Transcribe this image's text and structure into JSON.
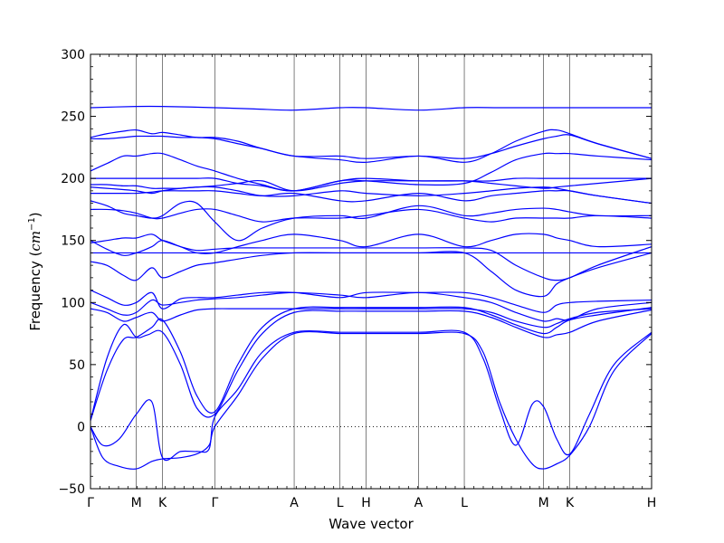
{
  "chart_data": {
    "type": "line",
    "xlabel": "Wave vector",
    "ylabel_prefix": "Frequency (",
    "ylabel_unit_base": "cm",
    "ylabel_unit_exp": "−1",
    "ylabel_suffix": ")",
    "ylim": [
      -50,
      300
    ],
    "yticks": [
      -50,
      0,
      50,
      100,
      150,
      200,
      250,
      300
    ],
    "grid": false,
    "zero_line": {
      "y": 0,
      "style": "dotted",
      "color": "#000000"
    },
    "band_color": "#0000ff",
    "xlim": [
      0,
      6.86
    ],
    "high_symmetry_points": [
      {
        "label": "Γ",
        "x": 0.0
      },
      {
        "label": "M",
        "x": 0.56
      },
      {
        "label": "K",
        "x": 0.88
      },
      {
        "label": "Γ",
        "x": 1.52
      },
      {
        "label": "A",
        "x": 2.49
      },
      {
        "label": "L",
        "x": 3.05
      },
      {
        "label": "H",
        "x": 3.37
      },
      {
        "label": "A",
        "x": 4.01
      },
      {
        "label": "L",
        "x": 4.57
      },
      {
        "label": "M",
        "x": 5.54
      },
      {
        "label": "K",
        "x": 5.86
      },
      {
        "label": "H",
        "x": 6.86
      }
    ],
    "series": [
      {
        "x": [
          0,
          0.15,
          0.35,
          0.56,
          0.75,
          0.88,
          1.1,
          1.3,
          1.45,
          1.52,
          1.8,
          2.1,
          2.49,
          3.05,
          3.37,
          4.01,
          4.57,
          4.8,
          5.0,
          5.2,
          5.4,
          5.54,
          5.7,
          5.86,
          6.1,
          6.4,
          6.86
        ],
        "y": [
          0,
          -25,
          -32,
          -34,
          -28,
          -26,
          -25,
          -22,
          -15,
          0,
          25,
          55,
          75,
          75,
          75,
          75,
          75,
          60,
          20,
          -10,
          -30,
          -34,
          -30,
          -23,
          0,
          45,
          75
        ]
      },
      {
        "x": [
          0,
          0.15,
          0.35,
          0.56,
          0.75,
          0.88,
          1.1,
          1.3,
          1.45,
          1.52,
          1.8,
          2.1,
          2.49,
          3.05,
          3.37,
          4.01,
          4.57,
          4.8,
          5.0,
          5.2,
          5.4,
          5.54,
          5.7,
          5.86,
          6.1,
          6.4,
          6.86
        ],
        "y": [
          0,
          -15,
          -10,
          10,
          20,
          -25,
          -20,
          -20,
          -18,
          8,
          30,
          60,
          76,
          76,
          76,
          76,
          76,
          55,
          15,
          -15,
          18,
          16,
          -10,
          -22,
          10,
          50,
          76
        ]
      },
      {
        "x": [
          0,
          0.2,
          0.4,
          0.56,
          0.7,
          0.88,
          1.1,
          1.3,
          1.52,
          1.8,
          2.1,
          2.49,
          3.05,
          3.37,
          4.01,
          4.57,
          4.9,
          5.2,
          5.54,
          5.7,
          5.86,
          6.2,
          6.86
        ],
        "y": [
          5,
          55,
          82,
          72,
          74,
          76,
          50,
          15,
          10,
          45,
          75,
          92,
          93,
          93,
          93,
          93,
          88,
          80,
          72,
          74,
          76,
          85,
          94
        ]
      },
      {
        "x": [
          0,
          0.2,
          0.4,
          0.56,
          0.75,
          0.88,
          1.1,
          1.3,
          1.52,
          1.8,
          2.1,
          2.49,
          3.05,
          3.37,
          4.01,
          4.57,
          4.9,
          5.2,
          5.54,
          5.7,
          5.86,
          6.2,
          6.86
        ],
        "y": [
          5,
          45,
          70,
          72,
          80,
          86,
          60,
          25,
          12,
          50,
          80,
          95,
          96,
          96,
          96,
          96,
          90,
          82,
          75,
          80,
          86,
          90,
          96
        ]
      },
      {
        "x": [
          0,
          0.2,
          0.4,
          0.56,
          0.75,
          0.88,
          1.1,
          1.3,
          1.52,
          1.8,
          2.1,
          2.49,
          3.05,
          3.37,
          4.01,
          4.57,
          4.9,
          5.2,
          5.54,
          5.7,
          5.86,
          6.2,
          6.86
        ],
        "y": [
          95,
          92,
          85,
          88,
          92,
          85,
          90,
          94,
          95,
          95,
          95,
          95,
          95,
          95,
          95,
          95,
          92,
          85,
          80,
          83,
          87,
          92,
          95
        ]
      },
      {
        "x": [
          0,
          0.2,
          0.4,
          0.56,
          0.75,
          0.88,
          1.1,
          1.3,
          1.52,
          1.8,
          2.1,
          2.49,
          3.05,
          3.37,
          4.01,
          4.57,
          4.9,
          5.2,
          5.54,
          5.7,
          5.86,
          6.2,
          6.86
        ],
        "y": [
          100,
          95,
          90,
          92,
          102,
          98,
          100,
          102,
          103,
          104,
          106,
          108,
          106,
          104,
          108,
          104,
          100,
          92,
          85,
          87,
          86,
          95,
          100
        ]
      },
      {
        "x": [
          0,
          0.2,
          0.4,
          0.56,
          0.75,
          0.88,
          1.1,
          1.3,
          1.52,
          1.8,
          2.1,
          2.49,
          3.05,
          3.37,
          4.01,
          4.57,
          4.9,
          5.2,
          5.54,
          5.7,
          5.86,
          6.2,
          6.86
        ],
        "y": [
          110,
          104,
          98,
          100,
          108,
          95,
          103,
          104,
          104,
          106,
          108,
          108,
          104,
          108,
          108,
          108,
          104,
          98,
          92,
          98,
          100,
          101,
          102
        ]
      },
      {
        "x": [
          0,
          0.2,
          0.4,
          0.56,
          0.75,
          0.88,
          1.1,
          1.3,
          1.52,
          1.8,
          2.1,
          2.49,
          3.05,
          3.37,
          4.01,
          4.57,
          4.9,
          5.2,
          5.54,
          5.7,
          5.86,
          6.2,
          6.86
        ],
        "y": [
          133,
          130,
          122,
          118,
          128,
          120,
          125,
          130,
          132,
          135,
          138,
          140,
          140,
          140,
          140,
          140,
          125,
          110,
          105,
          115,
          120,
          128,
          140
        ]
      },
      {
        "x": [
          0,
          0.2,
          0.4,
          0.56,
          0.75,
          0.88,
          1.1,
          1.3,
          1.52,
          1.8,
          2.1,
          2.49,
          3.05,
          3.37,
          4.01,
          4.57,
          4.9,
          5.2,
          5.54,
          5.7,
          5.86,
          6.2,
          6.86
        ],
        "y": [
          140,
          140,
          140,
          140,
          140,
          140,
          140,
          140,
          140,
          140,
          140,
          140,
          140,
          140,
          140,
          140,
          140,
          140,
          140,
          140,
          140,
          140,
          140
        ]
      },
      {
        "x": [
          0,
          0.2,
          0.4,
          0.56,
          0.75,
          0.88,
          1.1,
          1.3,
          1.52,
          1.8,
          2.1,
          2.49,
          3.05,
          3.37,
          4.01,
          4.57,
          4.9,
          5.2,
          5.54,
          5.7,
          5.86,
          6.2,
          6.86
        ],
        "y": [
          150,
          143,
          138,
          140,
          145,
          150,
          145,
          142,
          143,
          144,
          144,
          144,
          144,
          144,
          144,
          144,
          142,
          130,
          120,
          118,
          120,
          130,
          145
        ]
      },
      {
        "x": [
          0,
          0.2,
          0.4,
          0.56,
          0.75,
          0.88,
          1.1,
          1.3,
          1.52,
          1.8,
          2.1,
          2.49,
          3.05,
          3.37,
          4.01,
          4.57,
          4.9,
          5.2,
          5.54,
          5.7,
          5.86,
          6.2,
          6.86
        ],
        "y": [
          148,
          150,
          152,
          152,
          155,
          150,
          145,
          140,
          140,
          145,
          150,
          155,
          150,
          145,
          155,
          145,
          150,
          155,
          155,
          152,
          150,
          145,
          147
        ]
      },
      {
        "x": [
          0,
          0.2,
          0.4,
          0.56,
          0.75,
          0.88,
          1.1,
          1.3,
          1.52,
          1.8,
          2.1,
          2.49,
          3.05,
          3.37,
          4.01,
          4.57,
          4.9,
          5.2,
          5.54,
          5.7,
          5.86,
          6.2,
          6.86
        ],
        "y": [
          175,
          175,
          174,
          172,
          168,
          168,
          172,
          175,
          175,
          170,
          165,
          168,
          168,
          170,
          175,
          168,
          165,
          168,
          168,
          168,
          168,
          170,
          168
        ]
      },
      {
        "x": [
          0,
          0.2,
          0.4,
          0.56,
          0.75,
          0.88,
          1.1,
          1.3,
          1.52,
          1.8,
          2.1,
          2.49,
          3.05,
          3.37,
          4.01,
          4.57,
          4.9,
          5.2,
          5.54,
          5.7,
          5.86,
          6.2,
          6.86
        ],
        "y": [
          182,
          178,
          172,
          170,
          168,
          170,
          180,
          180,
          165,
          150,
          160,
          168,
          170,
          168,
          178,
          170,
          172,
          175,
          176,
          175,
          173,
          170,
          170
        ]
      },
      {
        "x": [
          0,
          0.2,
          0.4,
          0.56,
          0.75,
          0.88,
          1.1,
          1.3,
          1.52,
          1.8,
          2.1,
          2.49,
          3.05,
          3.37,
          4.01,
          4.57,
          4.9,
          5.2,
          5.54,
          5.7,
          5.86,
          6.2,
          6.86
        ],
        "y": [
          188,
          188,
          188,
          188,
          189,
          190,
          190,
          190,
          190,
          188,
          186,
          188,
          182,
          182,
          188,
          182,
          186,
          188,
          190,
          190,
          190,
          186,
          180
        ]
      },
      {
        "x": [
          0,
          0.2,
          0.4,
          0.56,
          0.75,
          0.88,
          1.1,
          1.3,
          1.52,
          1.8,
          2.1,
          2.49,
          3.05,
          3.37,
          4.01,
          4.57,
          4.9,
          5.2,
          5.54,
          5.7,
          5.86,
          6.2,
          6.86
        ],
        "y": [
          193,
          192,
          191,
          190,
          188,
          190,
          192,
          193,
          193,
          190,
          186,
          186,
          190,
          188,
          186,
          188,
          190,
          192,
          193,
          192,
          190,
          186,
          180
        ]
      },
      {
        "x": [
          0,
          0.2,
          0.4,
          0.56,
          0.75,
          0.88,
          1.1,
          1.3,
          1.52,
          1.8,
          2.1,
          2.49,
          3.05,
          3.37,
          4.01,
          4.57,
          4.9,
          5.2,
          5.54,
          5.7,
          5.86,
          6.2,
          6.86
        ],
        "y": [
          195,
          195,
          194,
          194,
          192,
          192,
          192,
          193,
          194,
          196,
          198,
          190,
          196,
          198,
          198,
          198,
          196,
          194,
          192,
          193,
          194,
          196,
          200
        ]
      },
      {
        "x": [
          0,
          0.2,
          0.4,
          0.56,
          0.75,
          0.88,
          1.1,
          1.3,
          1.52,
          1.8,
          2.1,
          2.49,
          3.05,
          3.37,
          4.01,
          4.57,
          4.9,
          5.2,
          5.54,
          5.7,
          5.86,
          6.2,
          6.86
        ],
        "y": [
          200,
          200,
          200,
          200,
          200,
          200,
          200,
          200,
          200,
          196,
          194,
          190,
          198,
          200,
          198,
          198,
          198,
          200,
          200,
          200,
          200,
          200,
          200
        ]
      },
      {
        "x": [
          0,
          0.2,
          0.4,
          0.56,
          0.75,
          0.88,
          1.1,
          1.3,
          1.52,
          1.8,
          2.1,
          2.49,
          3.05,
          3.37,
          4.01,
          4.57,
          4.9,
          5.2,
          5.54,
          5.7,
          5.86,
          6.2,
          6.86
        ],
        "y": [
          206,
          212,
          218,
          218,
          220,
          220,
          215,
          210,
          206,
          200,
          195,
          190,
          198,
          198,
          195,
          196,
          205,
          215,
          220,
          220,
          220,
          218,
          215
        ]
      },
      {
        "x": [
          0,
          0.2,
          0.4,
          0.56,
          0.75,
          0.88,
          1.1,
          1.3,
          1.52,
          1.8,
          2.1,
          2.49,
          3.05,
          3.37,
          4.01,
          4.57,
          4.9,
          5.2,
          5.54,
          5.7,
          5.86,
          6.2,
          6.86
        ],
        "y": [
          232,
          232,
          233,
          234,
          234,
          234,
          233,
          233,
          232,
          228,
          224,
          218,
          218,
          216,
          218,
          216,
          220,
          226,
          232,
          234,
          235,
          228,
          216
        ]
      },
      {
        "x": [
          0,
          0.2,
          0.4,
          0.56,
          0.75,
          0.88,
          1.1,
          1.3,
          1.52,
          1.8,
          2.1,
          2.49,
          3.05,
          3.37,
          4.01,
          4.57,
          4.9,
          5.2,
          5.54,
          5.7,
          5.86,
          6.2,
          6.86
        ],
        "y": [
          233,
          236,
          238,
          239,
          236,
          237,
          235,
          233,
          233,
          230,
          224,
          218,
          215,
          213,
          218,
          213,
          220,
          230,
          238,
          239,
          236,
          228,
          216
        ]
      },
      {
        "x": [
          0,
          0.56,
          0.88,
          1.52,
          2.0,
          2.49,
          3.05,
          3.37,
          4.01,
          4.57,
          5.0,
          5.54,
          5.86,
          6.4,
          6.86
        ],
        "y": [
          257,
          258,
          258,
          257,
          256,
          255,
          257,
          257,
          255,
          257,
          257,
          257,
          257,
          257,
          257
        ]
      }
    ]
  }
}
